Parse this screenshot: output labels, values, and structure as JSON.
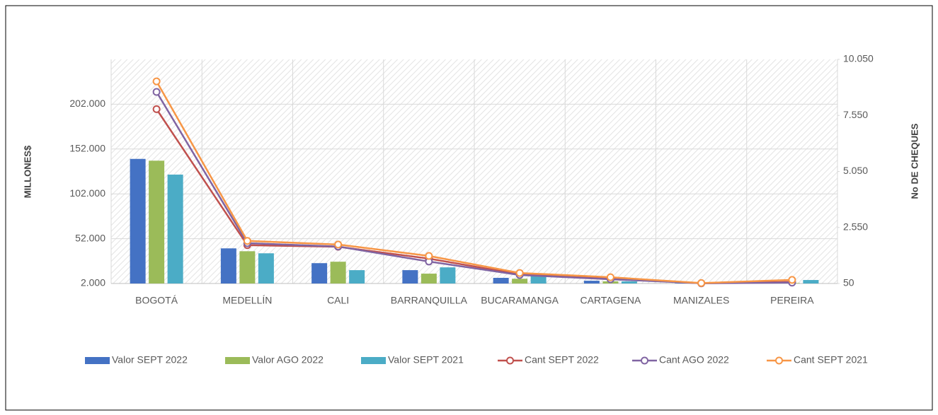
{
  "chart_data": {
    "type": "bar",
    "y_axis_label": "MILLONES$",
    "y2_axis_label": "No DE CHEQUES",
    "categories": [
      "BOGOTÁ",
      "MEDELLÍN",
      "CALI",
      "BARRANQUILLA",
      "BUCARAMANGA",
      "CARTAGENA",
      "MANIZALES",
      "PEREIRA"
    ],
    "series": [
      {
        "name": "Valor SEPT 2022",
        "type": "bar",
        "color": "#4472c4",
        "values": [
          141000,
          41200,
          24700,
          16900,
          8300,
          5100,
          2500,
          3500
        ]
      },
      {
        "name": "Valor AGO 2022",
        "type": "bar",
        "color": "#9bbb59",
        "values": [
          139000,
          38000,
          26300,
          13000,
          7300,
          4400,
          2400,
          2500
        ]
      },
      {
        "name": "Valor SEPT 2021",
        "type": "bar",
        "color": "#4bacc6",
        "values": [
          123500,
          35700,
          16900,
          20000,
          10600,
          4400,
          2500,
          5900
        ]
      },
      {
        "name": "Cant SEPT 2022",
        "type": "line",
        "axis": "y2",
        "color": "#c0504d",
        "values": [
          7830,
          1760,
          1690,
          1160,
          460,
          270,
          60,
          120
        ]
      },
      {
        "name": "Cant AGO 2022",
        "type": "line",
        "axis": "y2",
        "color": "#8064a2",
        "values": [
          8600,
          1850,
          1700,
          1030,
          430,
          240,
          60,
          90
        ]
      },
      {
        "name": "Cant SEPT 2021",
        "type": "line",
        "axis": "y2",
        "color": "#f79646",
        "values": [
          9070,
          1950,
          1790,
          1280,
          520,
          330,
          70,
          210
        ]
      }
    ],
    "ylim": [
      2000,
      252000
    ],
    "yticks": [
      {
        "value": 2000,
        "label": "2.000"
      },
      {
        "value": 52000,
        "label": "52.000"
      },
      {
        "value": 102000,
        "label": "102.000"
      },
      {
        "value": 152000,
        "label": "152.000"
      },
      {
        "value": 202000,
        "label": "202.000"
      }
    ],
    "y2lim": [
      50,
      10050
    ],
    "y2ticks": [
      50,
      {
        "value": 2550,
        "label": "2.550"
      },
      {
        "value": 5050,
        "label": "5.050"
      },
      {
        "value": 7550,
        "label": "7.550"
      },
      {
        "value": 10050,
        "label": "10.050"
      }
    ],
    "grid": true,
    "legend": "bottom"
  }
}
